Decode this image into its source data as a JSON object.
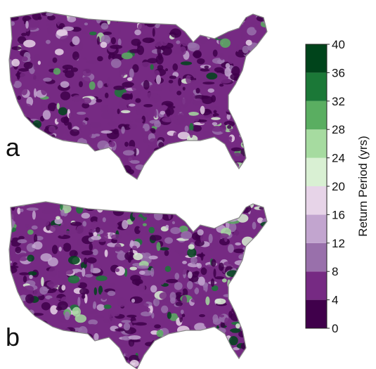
{
  "panels": [
    {
      "label": "a"
    },
    {
      "label": "b"
    }
  ],
  "colorbar": {
    "label": "Return Period (yrs)",
    "lim": [
      0,
      40
    ],
    "ticks": [
      0,
      4,
      8,
      12,
      16,
      20,
      24,
      28,
      32,
      36,
      40
    ],
    "colors": [
      "#40004b",
      "#762a83",
      "#9970ab",
      "#c2a5cf",
      "#e7d4e8",
      "#d9f0d3",
      "#a6dba0",
      "#5aae61",
      "#1b7837",
      "#00441b"
    ]
  }
}
